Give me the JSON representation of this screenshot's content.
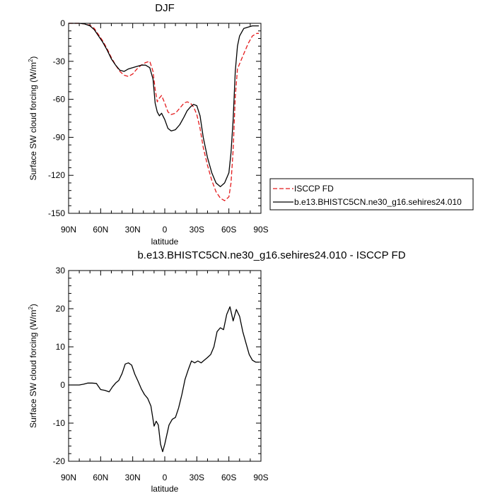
{
  "chart_data": [
    {
      "type": "line",
      "title": "DJF",
      "xlabel": "latitude",
      "ylabel": "Surface SW cloud forcing (W/m",
      "ylabel_sup": "2",
      "ylabel_close": ")",
      "xlim": [
        90,
        -90
      ],
      "ylim": [
        -150,
        0
      ],
      "xticks": [
        90,
        60,
        30,
        0,
        -30,
        -60,
        -90
      ],
      "xtick_labels": [
        "90N",
        "60N",
        "30N",
        "0",
        "30S",
        "60S",
        "90S"
      ],
      "yticks": [
        -150,
        -120,
        -90,
        -60,
        -30,
        0
      ],
      "ytick_labels": [
        "-150",
        "-120",
        "-90",
        "-60",
        "-30",
        "0"
      ],
      "grid": false,
      "legend_position": "right",
      "series": [
        {
          "name": "ISCCP FD",
          "color": "#e41a1c",
          "dash": "dashed",
          "x": [
            90,
            85,
            80,
            75,
            70,
            66,
            62,
            58,
            54,
            50,
            46,
            42,
            38,
            34,
            30,
            26,
            22,
            18,
            14,
            11,
            9,
            7,
            5,
            3,
            0,
            -3,
            -6,
            -10,
            -14,
            -18,
            -21,
            -24,
            -27,
            -30,
            -33,
            -36,
            -40,
            -44,
            -48,
            -52,
            -56,
            -60,
            -62,
            -64,
            -66,
            -68,
            -70,
            -74,
            -78,
            -82,
            -86,
            -88
          ],
          "y": [
            0,
            0,
            0,
            -0.5,
            -1.5,
            -4,
            -9,
            -14,
            -20,
            -27,
            -33,
            -38,
            -41,
            -42,
            -40,
            -36,
            -33,
            -31,
            -30,
            -38,
            -52,
            -62,
            -59,
            -57,
            -63,
            -70,
            -72,
            -71,
            -67,
            -63,
            -62,
            -63,
            -66,
            -72,
            -83,
            -98,
            -112,
            -124,
            -133,
            -138,
            -140,
            -137,
            -126,
            -100,
            -58,
            -36,
            -32,
            -24,
            -16,
            -10,
            -8,
            -8
          ]
        },
        {
          "name": "b.e13.BHISTC5CN.ne30_g16.sehires24.010",
          "color": "#000000",
          "dash": "solid",
          "x": [
            90,
            85,
            80,
            75,
            70,
            66,
            62,
            58,
            54,
            50,
            46,
            42,
            38,
            34,
            30,
            26,
            22,
            18,
            14,
            11,
            9,
            7,
            5,
            3,
            0,
            -3,
            -6,
            -10,
            -14,
            -18,
            -21,
            -24,
            -27,
            -30,
            -33,
            -36,
            -40,
            -44,
            -48,
            -52,
            -56,
            -60,
            -62,
            -64,
            -66,
            -68,
            -70,
            -74,
            -78,
            -82,
            -86,
            -88
          ],
          "y": [
            0,
            0,
            0,
            -0.5,
            -2,
            -5,
            -10,
            -15,
            -21,
            -28,
            -33,
            -37,
            -38,
            -36,
            -35,
            -34,
            -33,
            -33,
            -35,
            -44,
            -63,
            -70,
            -73,
            -71,
            -76,
            -83,
            -85,
            -84,
            -80,
            -74,
            -69,
            -66,
            -64,
            -65,
            -73,
            -90,
            -106,
            -118,
            -126,
            -129,
            -126,
            -118,
            -102,
            -76,
            -38,
            -18,
            -10,
            -4,
            -3,
            -2,
            -2,
            -2
          ]
        }
      ]
    },
    {
      "type": "line",
      "title": "b.e13.BHISTC5CN.ne30_g16.sehires24.010 - ISCCP FD",
      "xlabel": "latitude",
      "ylabel": "Surface SW cloud forcing (W/m",
      "ylabel_sup": "2",
      "ylabel_close": ")",
      "xlim": [
        90,
        -90
      ],
      "ylim": [
        -20,
        30
      ],
      "xticks": [
        90,
        60,
        30,
        0,
        -30,
        -60,
        -90
      ],
      "xtick_labels": [
        "90N",
        "60N",
        "30N",
        "0",
        "30S",
        "60S",
        "90S"
      ],
      "yticks": [
        -20,
        -10,
        0,
        10,
        20,
        30
      ],
      "ytick_labels": [
        "-20",
        "-10",
        "0",
        "10",
        "20",
        "30"
      ],
      "grid": false,
      "series": [
        {
          "color": "#000000",
          "dash": "solid",
          "x": [
            90,
            85,
            80,
            76,
            72,
            68,
            64,
            60,
            56,
            52,
            49,
            46,
            43,
            40,
            37,
            34,
            31,
            28,
            25,
            22,
            19,
            16,
            13,
            10,
            8,
            6,
            4,
            2,
            0,
            -2,
            -4,
            -7,
            -10,
            -13,
            -16,
            -19,
            -22,
            -25,
            -28,
            -31,
            -34,
            -37,
            -40,
            -43,
            -46,
            -49,
            -52,
            -55,
            -58,
            -61,
            -64,
            -67,
            -70,
            -73,
            -76,
            -79,
            -82,
            -85,
            -88
          ],
          "y": [
            0,
            0,
            0,
            0.2,
            0.5,
            0.5,
            0.4,
            -1.2,
            -1.4,
            -1.8,
            -0.5,
            0.5,
            1.2,
            3,
            5.5,
            5.8,
            5.2,
            2.8,
            1,
            -1,
            -2.5,
            -3.5,
            -5.5,
            -10.8,
            -9.5,
            -10.5,
            -15.5,
            -17.5,
            -15.5,
            -13,
            -10.5,
            -9,
            -8.5,
            -6,
            -2.5,
            1.5,
            4,
            6.3,
            5.8,
            6.3,
            5.8,
            6.5,
            7.2,
            8,
            10,
            14,
            15,
            14.5,
            18.5,
            20.5,
            16.8,
            19.8,
            18,
            14,
            11,
            8,
            6.5,
            6,
            6
          ]
        }
      ]
    }
  ]
}
